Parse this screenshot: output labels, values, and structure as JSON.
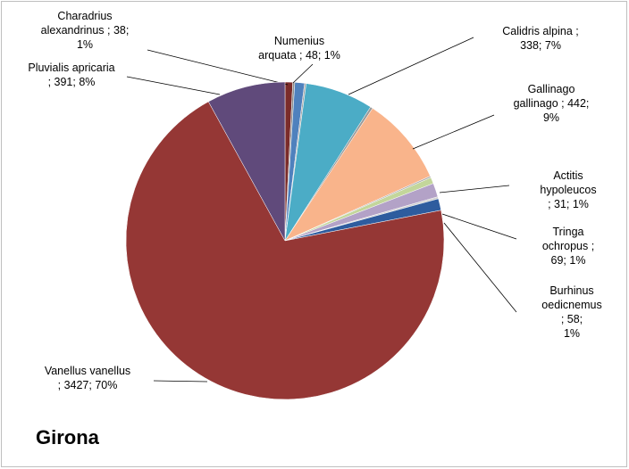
{
  "chart_data": {
    "type": "pie",
    "title": "Girona",
    "categories": [
      "Charadrius alexandrinus",
      null,
      "Numenius arquata",
      null,
      "Calidris alpina",
      null,
      "Gallinago gallinago",
      null,
      "Actitis hypoleucos",
      "Tringa ochropus",
      null,
      "Burhinus oedicnemus",
      "Vanellus vanellus",
      "Pluvialis apricaria"
    ],
    "values": [
      38,
      10,
      48,
      8,
      338,
      12,
      442,
      8,
      31,
      69,
      10,
      58,
      3427,
      391
    ],
    "value_labels": [
      "Charadrius\nalexandrinus ; 38;\n1%",
      null,
      "Numenius\narquata ; 48; 1%",
      null,
      "Calidris alpina ;\n338; 7%",
      null,
      "Gallinago\ngallinago ; 442;\n9%",
      null,
      "Actitis hypoleucos\n; 31; 1%",
      "Tringa ochropus ;\n69; 1%",
      null,
      "Burhinus\noedicnemus ; 58;\n1%",
      "Vanellus vanellus\n; 3427; 70%",
      "Pluvialis apricaria\n; 391; 8%"
    ],
    "colors": [
      "#7b2c2a",
      "#8c8c8c",
      "#4f81bd",
      "#a6a6a6",
      "#4bacc6",
      "#9a9a9a",
      "#f9b48b",
      "#b0b0b0",
      "#c3d69b",
      "#b3a2c7",
      "#d0d0d0",
      "#2e5c9e",
      "#953735",
      "#604a7b"
    ]
  }
}
